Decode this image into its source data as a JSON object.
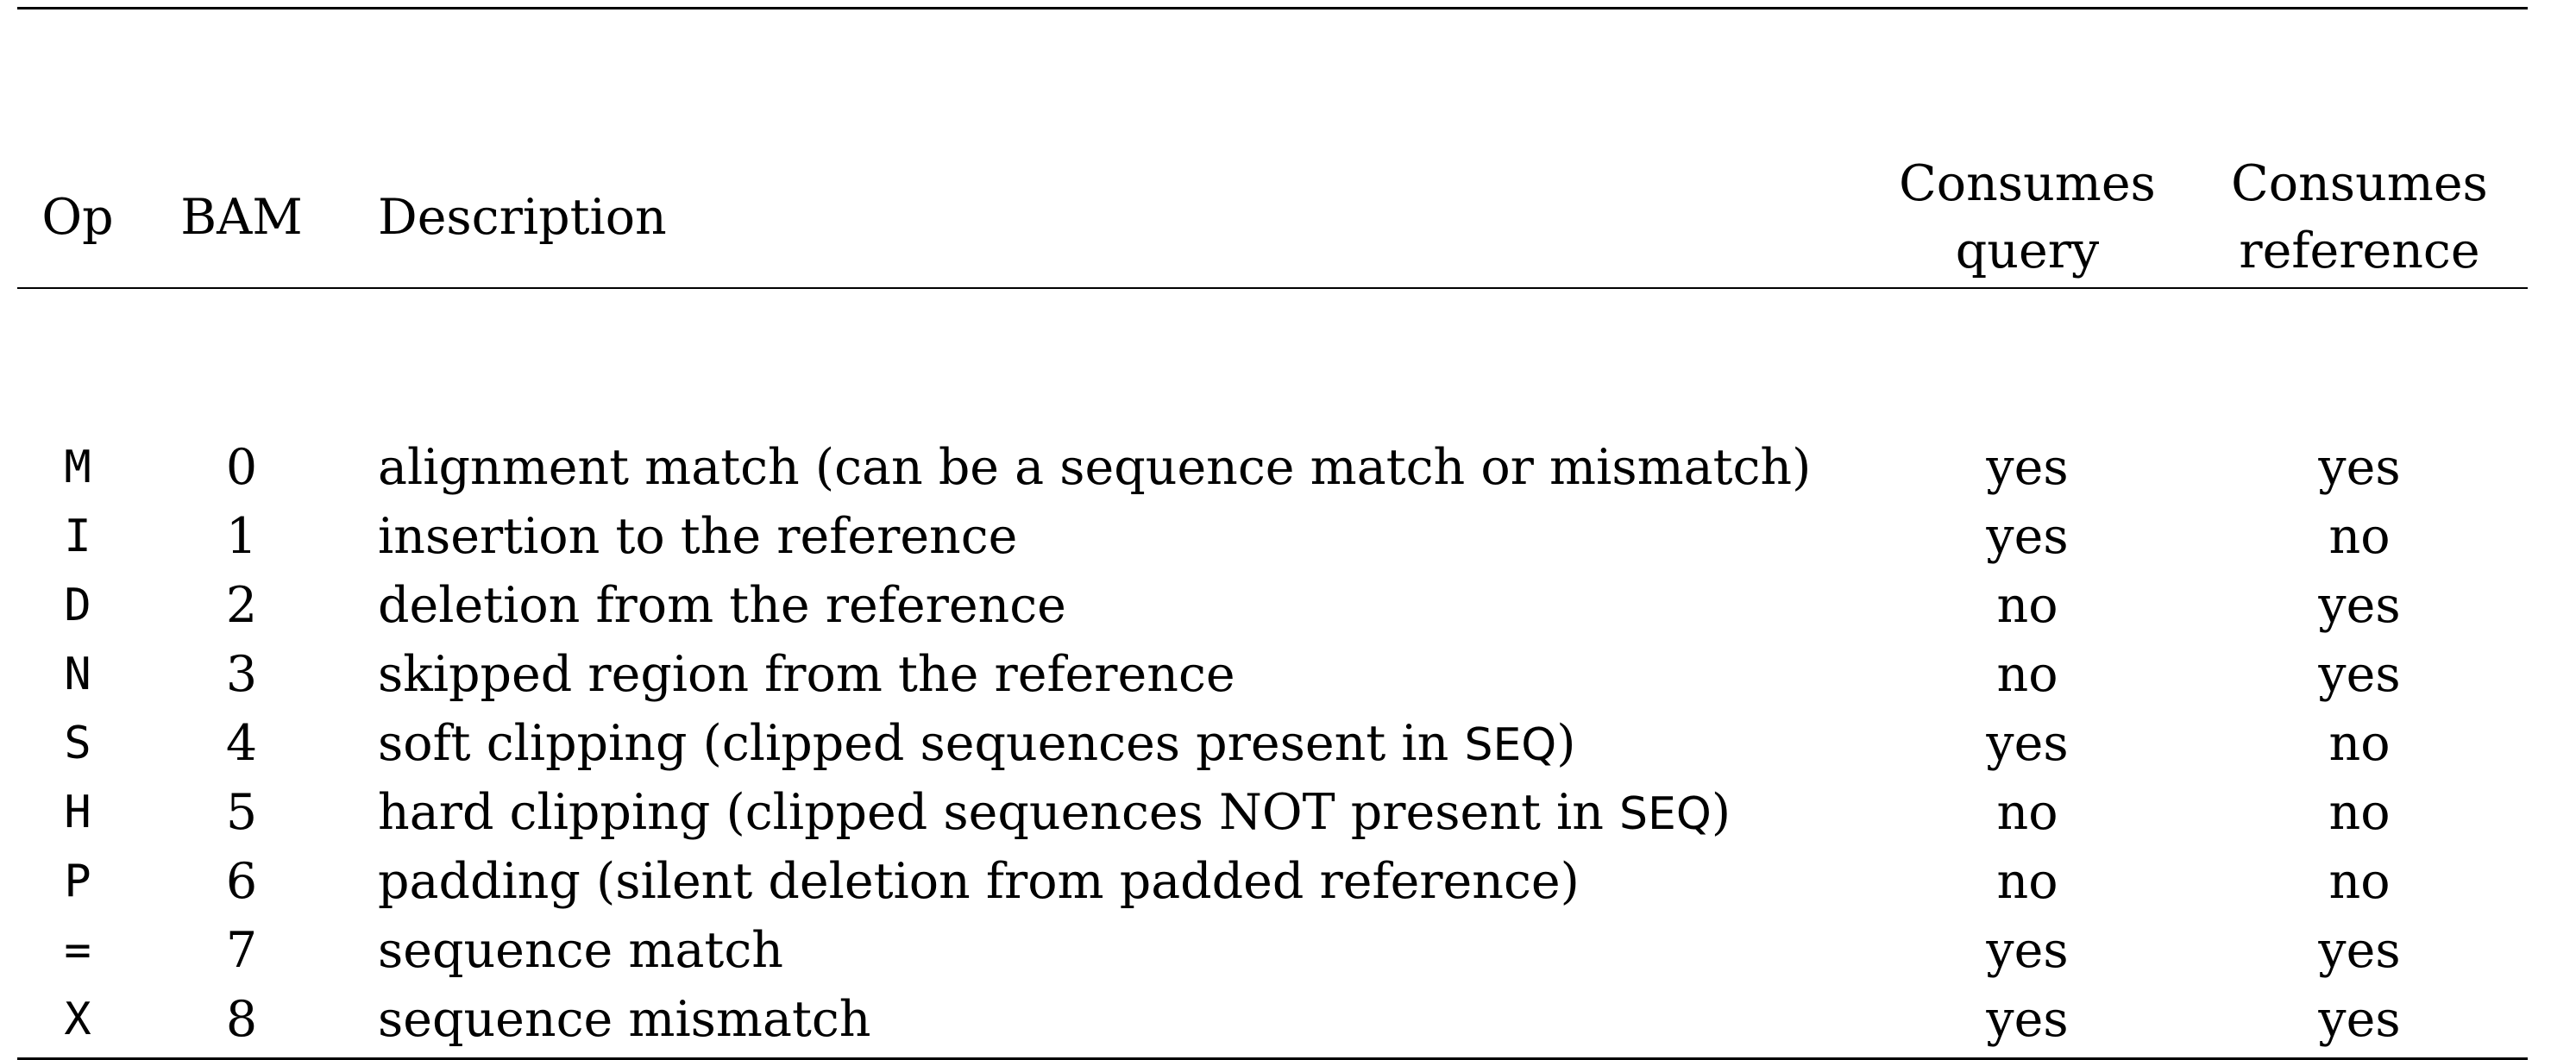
{
  "headers": {
    "op": "Op",
    "bam": "BAM",
    "description": "Description",
    "consumes_query_line1": "Consumes",
    "consumes_query_line2": "query",
    "consumes_reference_line1": "Consumes",
    "consumes_reference_line2": "reference"
  },
  "rows": [
    {
      "op": "M",
      "bam": "0",
      "desc": "alignment match (can be a sequence match or mismatch)",
      "desc_pre": "",
      "desc_code": "",
      "desc_post": "",
      "query": "yes",
      "reference": "yes"
    },
    {
      "op": "I",
      "bam": "1",
      "desc": "insertion to the reference",
      "desc_pre": "",
      "desc_code": "",
      "desc_post": "",
      "query": "yes",
      "reference": "no"
    },
    {
      "op": "D",
      "bam": "2",
      "desc": "deletion from the reference",
      "desc_pre": "",
      "desc_code": "",
      "desc_post": "",
      "query": "no",
      "reference": "yes"
    },
    {
      "op": "N",
      "bam": "3",
      "desc": "skipped region from the reference",
      "desc_pre": "",
      "desc_code": "",
      "desc_post": "",
      "query": "no",
      "reference": "yes"
    },
    {
      "op": "S",
      "bam": "4",
      "desc": "",
      "desc_pre": "soft clipping (clipped sequences present in ",
      "desc_code": "SEQ",
      "desc_post": ")",
      "query": "yes",
      "reference": "no"
    },
    {
      "op": "H",
      "bam": "5",
      "desc": "",
      "desc_pre": "hard clipping (clipped sequences NOT present in ",
      "desc_code": "SEQ",
      "desc_post": ")",
      "query": "no",
      "reference": "no"
    },
    {
      "op": "P",
      "bam": "6",
      "desc": "padding (silent deletion from padded reference)",
      "desc_pre": "",
      "desc_code": "",
      "desc_post": "",
      "query": "no",
      "reference": "no"
    },
    {
      "op": "=",
      "bam": "7",
      "desc": "sequence match",
      "desc_pre": "",
      "desc_code": "",
      "desc_post": "",
      "query": "yes",
      "reference": "yes"
    },
    {
      "op": "X",
      "bam": "8",
      "desc": "sequence mismatch",
      "desc_pre": "",
      "desc_code": "",
      "desc_post": "",
      "query": "yes",
      "reference": "yes"
    }
  ]
}
